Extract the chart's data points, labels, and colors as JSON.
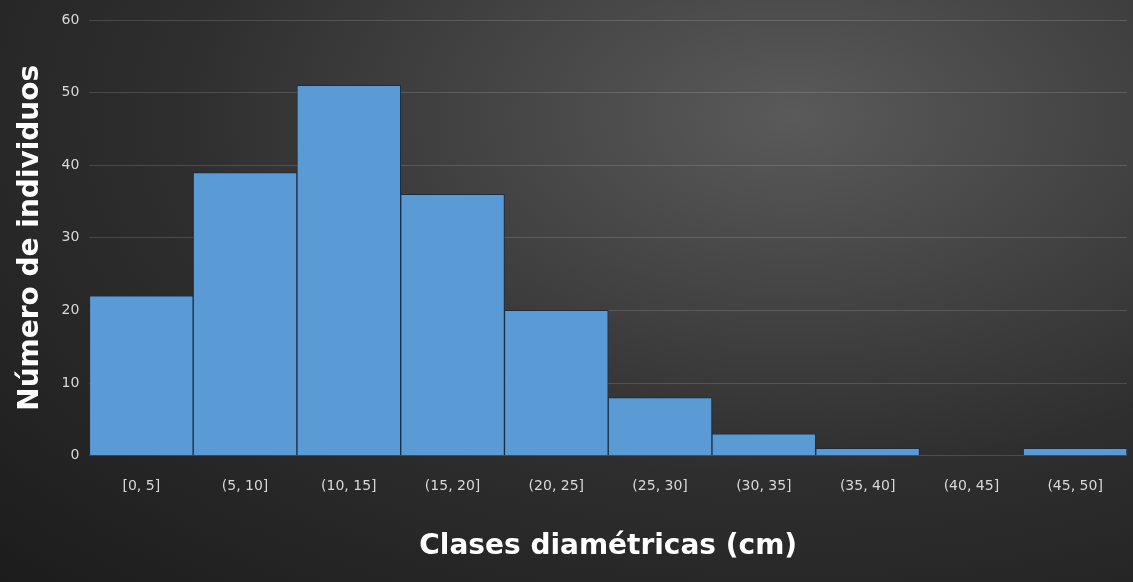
{
  "chart_data": {
    "type": "bar",
    "xlabel": "Clases diamétricas (cm)",
    "ylabel": "Número de individuos",
    "categories": [
      "[0, 5]",
      "(5, 10]",
      "(10, 15]",
      "(15, 20]",
      "(20, 25]",
      "(25, 30]",
      "(30, 35]",
      "(35, 40]",
      "(40, 45]",
      "(45, 50]"
    ],
    "values": [
      22,
      39,
      51,
      36,
      20,
      8,
      3,
      1,
      0,
      1
    ],
    "color": "#5b9bd5",
    "ylim": [
      0,
      60
    ],
    "yticks": [
      0,
      10,
      20,
      30,
      40,
      50,
      60
    ],
    "grid": "y",
    "legend": false
  }
}
